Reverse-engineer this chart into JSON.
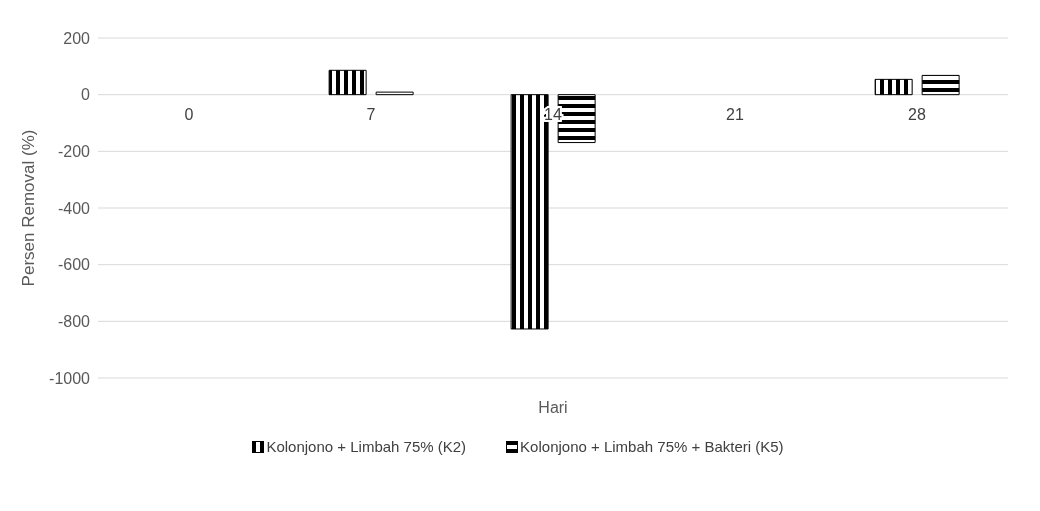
{
  "chart_data": {
    "type": "bar",
    "xlabel": "Hari",
    "ylabel": "Persen Removal (%)",
    "categories": [
      "0",
      "7",
      "14",
      "21",
      "28"
    ],
    "series": [
      {
        "name": "Kolonjono + Limbah 75% (K2)",
        "color": "#000000",
        "values": [
          null,
          86,
          -827,
          null,
          54
        ]
      },
      {
        "name": "Kolonjono + Limbah 75% + Bakteri (K5)",
        "color": "#000000",
        "values": [
          null,
          9,
          -169,
          null,
          68
        ]
      }
    ],
    "ylim": [
      -1000,
      200
    ],
    "yticks": [
      200,
      0,
      -200,
      -400,
      -600,
      -800,
      -1000
    ],
    "grid": "y",
    "legend": "bottom"
  }
}
